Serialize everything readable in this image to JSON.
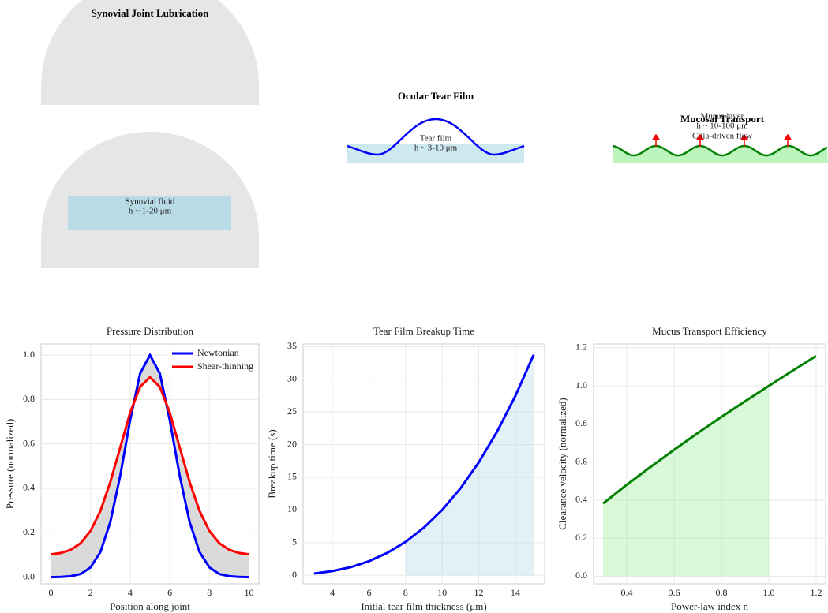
{
  "chart_data": [
    {
      "type": "diagram",
      "title": "Synovial Joint Lubrication",
      "labels": [
        "Synovial fluid",
        "h ~ 1-20 μm"
      ]
    },
    {
      "type": "diagram",
      "title": "Ocular Tear Film",
      "labels": [
        "Tear film",
        "h ~ 3-10 μm"
      ]
    },
    {
      "type": "diagram",
      "title": "Mucosal Transport",
      "labels": [
        "Mucus layer",
        "h ~ 10-100 μm",
        "Cilia-driven flow"
      ]
    },
    {
      "type": "line",
      "title": "Pressure Distribution",
      "x_label": "Position along joint",
      "y_label": "Pressure (normalized)",
      "x": [
        0,
        0.5,
        1,
        1.5,
        2,
        2.5,
        3,
        3.5,
        4,
        4.5,
        5,
        5.5,
        6,
        6.5,
        7,
        7.5,
        8,
        8.5,
        9,
        9.5,
        10
      ],
      "series": [
        {
          "name": "Newtonian",
          "color": "#0000ff",
          "values": [
            0,
            0.001,
            0.004,
            0.014,
            0.044,
            0.114,
            0.249,
            0.458,
            0.707,
            0.917,
            1,
            0.917,
            0.707,
            0.458,
            0.249,
            0.114,
            0.044,
            0.014,
            0.004,
            0.001,
            0
          ]
        },
        {
          "name": "Shear-thinning",
          "color": "#ff0000",
          "values": [
            0.103,
            0.109,
            0.123,
            0.153,
            0.208,
            0.299,
            0.429,
            0.585,
            0.741,
            0.857,
            0.9,
            0.857,
            0.741,
            0.585,
            0.429,
            0.299,
            0.208,
            0.153,
            0.123,
            0.109,
            0.103
          ]
        }
      ],
      "fill_between_series": true,
      "fill_color": "#d3d3d3",
      "xlim": [
        -0.5,
        10.5
      ],
      "xticks": [
        0,
        2,
        4,
        6,
        8,
        10
      ],
      "ylim": [
        -0.03,
        1.05
      ],
      "yticks": [
        {
          "value": 0,
          "label": "0.0"
        },
        0.2,
        0.4,
        0.6,
        0.8,
        {
          "value": 1,
          "label": "1.0"
        }
      ],
      "grid": true,
      "legend": "upper right"
    },
    {
      "type": "line",
      "title": "Tear Film Breakup Time",
      "x_label": "Initial tear film thickness (μm)",
      "y_label": "Breakup time (s)",
      "x": [
        3,
        4,
        5,
        6,
        7,
        8,
        9,
        10,
        11,
        12,
        13,
        14,
        15
      ],
      "series": [
        {
          "color": "#0000ff",
          "values": [
            0.27,
            0.64,
            1.25,
            2.16,
            3.43,
            5.12,
            7.29,
            10,
            13.31,
            17.28,
            21.97,
            27.44,
            33.75
          ]
        }
      ],
      "shade_range": [
        8,
        15
      ],
      "shade_color": "#add8e6",
      "xlim": [
        2.4,
        15.6
      ],
      "xticks": [
        4,
        6,
        8,
        10,
        12,
        14
      ],
      "ylim": [
        -1.3,
        35.4
      ],
      "yticks": [
        0,
        5,
        10,
        15,
        20,
        25,
        30,
        35
      ],
      "grid": true
    },
    {
      "type": "line",
      "title": "Mucus Transport Efficiency",
      "x_label": "Power-law index n",
      "y_label": "Clearance velocity (normalized)",
      "x": [
        0.3,
        0.4,
        0.5,
        0.6,
        0.7,
        0.8,
        0.9,
        1,
        1.1,
        1.2
      ],
      "series": [
        {
          "color": "#008000",
          "values": [
            0.382,
            0.48,
            0.574,
            0.664,
            0.752,
            0.837,
            0.919,
            1,
            1.079,
            1.157
          ]
        }
      ],
      "shade_range": [
        0.3,
        1
      ],
      "shade_color": "#90ee90",
      "xlim": [
        0.26,
        1.24
      ],
      "xticks": [
        0.4,
        0.6,
        0.8,
        {
          "value": 1,
          "label": "1.0"
        },
        1.2
      ],
      "ylim": [
        -0.04,
        1.22
      ],
      "yticks": [
        {
          "value": 0,
          "label": "0.0"
        },
        0.2,
        0.4,
        0.6,
        0.8,
        {
          "value": 1,
          "label": "1.0"
        },
        1.2
      ],
      "grid": true
    }
  ]
}
